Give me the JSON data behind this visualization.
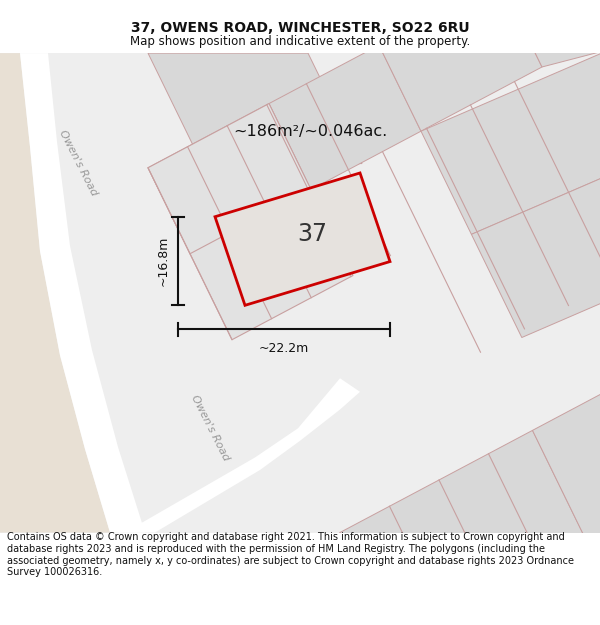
{
  "title": "37, OWENS ROAD, WINCHESTER, SO22 6RU",
  "subtitle": "Map shows position and indicative extent of the property.",
  "footer": "Contains OS data © Crown copyright and database right 2021. This information is subject to Crown copyright and database rights 2023 and is reproduced with the permission of HM Land Registry. The polygons (including the associated geometry, namely x, y co-ordinates) are subject to Crown copyright and database rights 2023 Ordnance Survey 100026316.",
  "area_label": "~186m²/~0.046ac.",
  "number_label": "37",
  "dim_height": "~16.8m",
  "dim_width": "~22.2m",
  "road_label_1": "Owen's Road",
  "road_label_2": "Owen's Road",
  "title_fontsize": 10,
  "subtitle_fontsize": 8.5,
  "footer_fontsize": 7.0,
  "map_bg": "#eeeeee",
  "left_bg": "#e8e0d4",
  "road_white": "#ffffff",
  "block_fill": "#d8d8d8",
  "block_edge": "#c8a0a0",
  "parcel_fill": "#e2e2e2",
  "plot_fill": "#e6e2de",
  "plot_edge": "#cc0000",
  "dim_color": "#111111"
}
